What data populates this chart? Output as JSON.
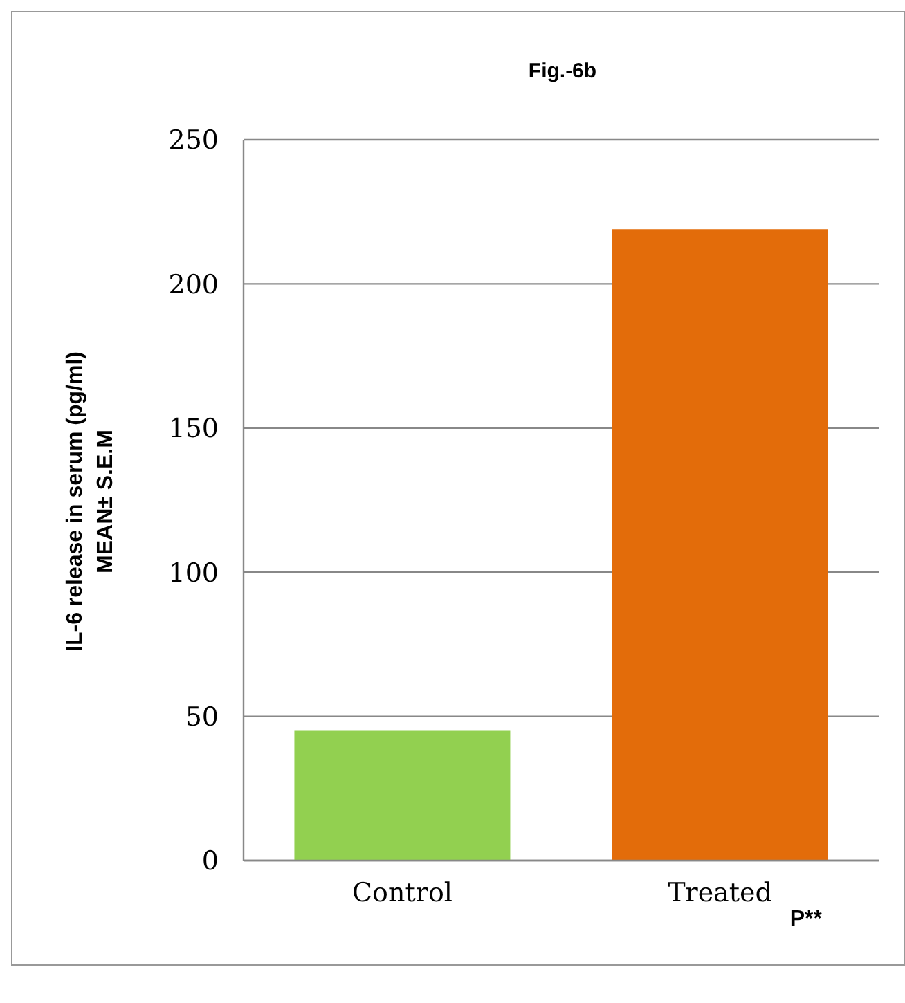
{
  "chart_data": {
    "type": "bar",
    "title": "Fig.-6b",
    "ylabel": "IL-6 release in serum (pg/ml)\nMEAN± S.E.M",
    "categories": [
      "Control",
      "Treated"
    ],
    "values": [
      45,
      219
    ],
    "colors": [
      "#92d050",
      "#e36c0a"
    ],
    "ylim": [
      0,
      250
    ],
    "yticks": [
      0,
      50,
      100,
      150,
      200,
      250
    ],
    "grid": "y",
    "annotations": [
      "P**"
    ]
  }
}
